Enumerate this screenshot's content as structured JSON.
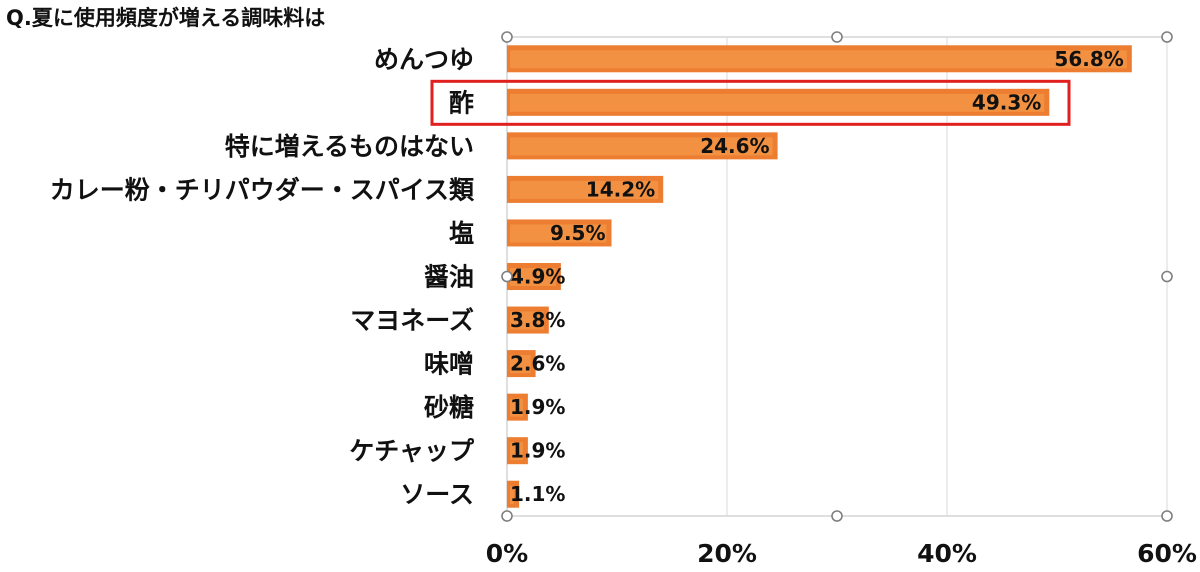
{
  "chart_data": {
    "type": "bar",
    "orientation": "horizontal",
    "title": "Q.夏に使用頻度が増える調味料は",
    "categories": [
      "めんつゆ",
      "酢",
      "特に増えるものはない",
      "カレー粉・チリパウダー・スパイス類",
      "塩",
      "醤油",
      "マヨネーズ",
      "味噌",
      "砂糖",
      "ケチャップ",
      "ソース"
    ],
    "values": [
      56.8,
      49.3,
      24.6,
      14.2,
      9.5,
      4.9,
      3.8,
      2.6,
      1.9,
      1.9,
      1.1
    ],
    "value_labels": [
      "56.8%",
      "49.3%",
      "24.6%",
      "14.2%",
      "9.5%",
      "4.9%",
      "3.8%",
      "2.6%",
      "1.9%",
      "1.9%",
      "1.1%"
    ],
    "xlim": [
      0,
      60
    ],
    "xticks": [
      0,
      20,
      40,
      60
    ],
    "xtick_labels": [
      "0%",
      "20%",
      "40%",
      "60%"
    ],
    "grid": true,
    "highlighted_category": "酢",
    "colors": {
      "bar": "#ed7d31",
      "bar_highlight": "#f4a24e",
      "highlight_box": "#e0201e"
    }
  }
}
